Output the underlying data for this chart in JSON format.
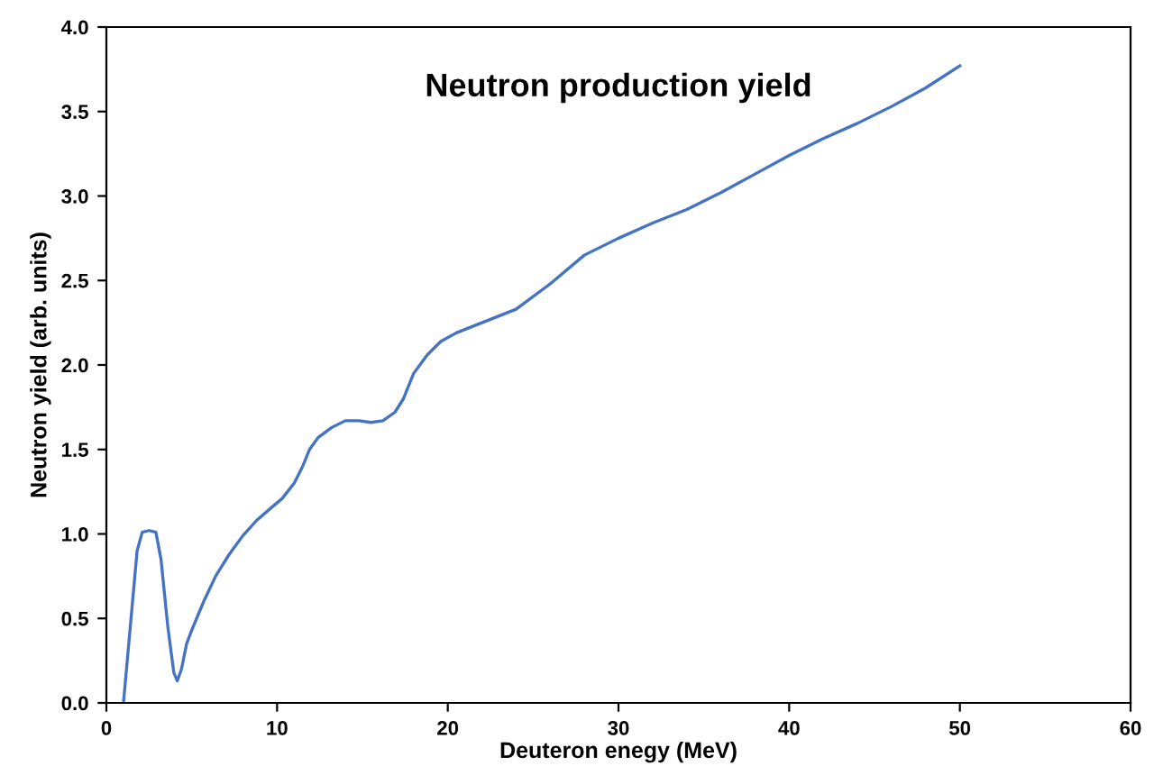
{
  "chart_data": {
    "type": "line",
    "title": "Neutron production yield",
    "xlabel": "Deuteron enegy (MeV)",
    "ylabel": "Neutron yield (arb. units)",
    "xlim": [
      0,
      60
    ],
    "xticks": [
      0,
      10,
      20,
      30,
      40,
      50,
      60
    ],
    "ylim": [
      0,
      4.0
    ],
    "yticks": [
      {
        "value": 0,
        "label": "0.0"
      },
      0.5,
      {
        "value": 1,
        "label": "1.0"
      },
      1.5,
      {
        "value": 2,
        "label": "2.0"
      },
      2.5,
      {
        "value": 3,
        "label": "3.0"
      },
      3.5,
      {
        "value": 4,
        "label": "4.0"
      }
    ],
    "grid": false,
    "legend": false,
    "marker": "none",
    "line_style": "solid",
    "series": [
      {
        "color": "#4472c4",
        "x": [
          1.0,
          1.4,
          1.8,
          2.1,
          2.5,
          2.9,
          3.2,
          3.6,
          3.95,
          4.15,
          4.4,
          4.7,
          5.0,
          5.7,
          6.4,
          7.2,
          8.0,
          8.8,
          9.6,
          10.3,
          11.0,
          11.5,
          11.9,
          12.4,
          13.2,
          14.0,
          14.8,
          15.5,
          16.2,
          16.9,
          17.4,
          18.0,
          18.8,
          19.6,
          20.5,
          22.0,
          24.0,
          26.0,
          28.0,
          30.0,
          32.0,
          34.0,
          36.0,
          38.0,
          40.0,
          42.0,
          44.0,
          46.0,
          48.0,
          50.0
        ],
        "values": [
          0.0,
          0.45,
          0.9,
          1.01,
          1.02,
          1.01,
          0.85,
          0.45,
          0.18,
          0.13,
          0.2,
          0.35,
          0.43,
          0.6,
          0.75,
          0.88,
          0.99,
          1.08,
          1.15,
          1.21,
          1.3,
          1.4,
          1.5,
          1.57,
          1.63,
          1.67,
          1.67,
          1.66,
          1.67,
          1.72,
          1.8,
          1.95,
          2.06,
          2.14,
          2.19,
          2.25,
          2.33,
          2.48,
          2.65,
          2.75,
          2.84,
          2.92,
          3.02,
          3.13,
          3.24,
          3.34,
          3.43,
          3.53,
          3.64,
          3.77
        ]
      }
    ]
  }
}
